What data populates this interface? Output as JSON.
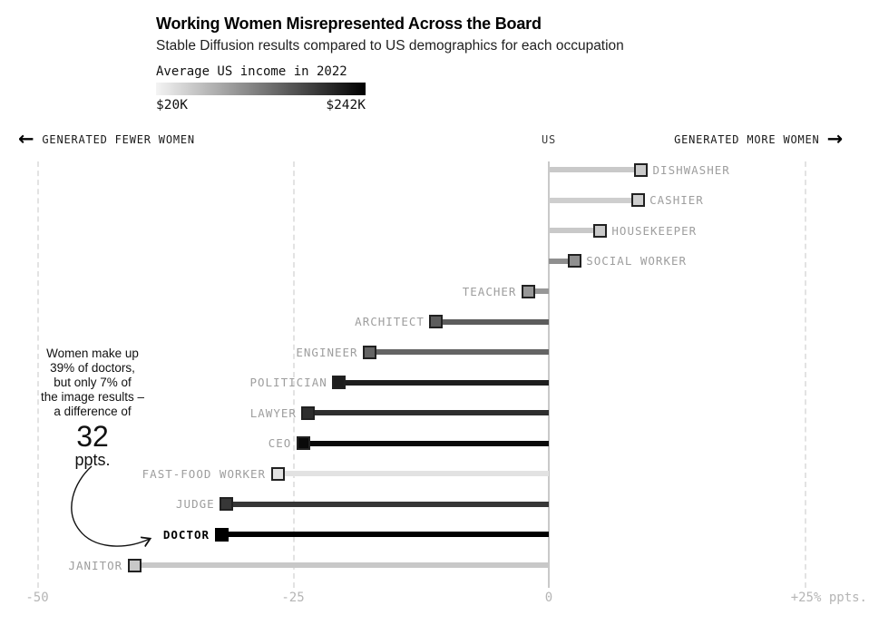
{
  "chart_data": {
    "type": "bar",
    "variant": "horizontal-lollipop",
    "title": "Working Women Misrepresented Across the Board",
    "subtitle": "Stable Diffusion results compared to US demographics for each occupation",
    "legend": {
      "label": "Average US income in 2022",
      "min_label": "$20K",
      "max_label": "$242K",
      "gradient_from": "#f4f4f4",
      "gradient_to": "#000000"
    },
    "direction_labels": {
      "left_arrow": "←",
      "left": "GENERATED FEWER WOMEN",
      "center": "US",
      "right": "GENERATED MORE WOMEN",
      "right_arrow": "→"
    },
    "x_axis": {
      "unit": "percentage points vs US demographics",
      "range": [
        -50,
        31
      ],
      "ticks": [
        {
          "value": -50,
          "label": "-50",
          "align": "center"
        },
        {
          "value": -25,
          "label": "-25",
          "align": "center"
        },
        {
          "value": 0,
          "label": "0",
          "align": "center"
        },
        {
          "value": 25,
          "label": "+25% ppts.",
          "align": "right"
        }
      ]
    },
    "rows": [
      {
        "label": "DISHWASHER",
        "value": 9,
        "color": "#c9c9c9"
      },
      {
        "label": "CASHIER",
        "value": 8.7,
        "color": "#cecece"
      },
      {
        "label": "HOUSEKEEPER",
        "value": 5,
        "color": "#c9c9c9"
      },
      {
        "label": "SOCIAL WORKER",
        "value": 2.5,
        "color": "#8f8f8f"
      },
      {
        "label": "TEACHER",
        "value": -2,
        "color": "#979797"
      },
      {
        "label": "ARCHITECT",
        "value": -11,
        "color": "#5d5d5d"
      },
      {
        "label": "ENGINEER",
        "value": -17.5,
        "color": "#646464"
      },
      {
        "label": "POLITICIAN",
        "value": -20.5,
        "color": "#1e1e1e"
      },
      {
        "label": "LAWYER",
        "value": -23.5,
        "color": "#2e2e2e"
      },
      {
        "label": "CEO",
        "value": -24,
        "color": "#0a0a0a"
      },
      {
        "label": "FAST-FOOD WORKER",
        "value": -26.5,
        "color": "#e2e2e2"
      },
      {
        "label": "JUDGE",
        "value": -31.5,
        "color": "#373737"
      },
      {
        "label": "DOCTOR",
        "value": -32,
        "color": "#000000",
        "highlight": true
      },
      {
        "label": "JANITOR",
        "value": -40.5,
        "color": "#c8c8c8"
      }
    ],
    "annotation": {
      "lines": [
        "Women make up",
        "39% of doctors,",
        "but only 7% of",
        "the image results –",
        "a difference of"
      ],
      "big_number": "32",
      "suffix": "ppts."
    }
  }
}
